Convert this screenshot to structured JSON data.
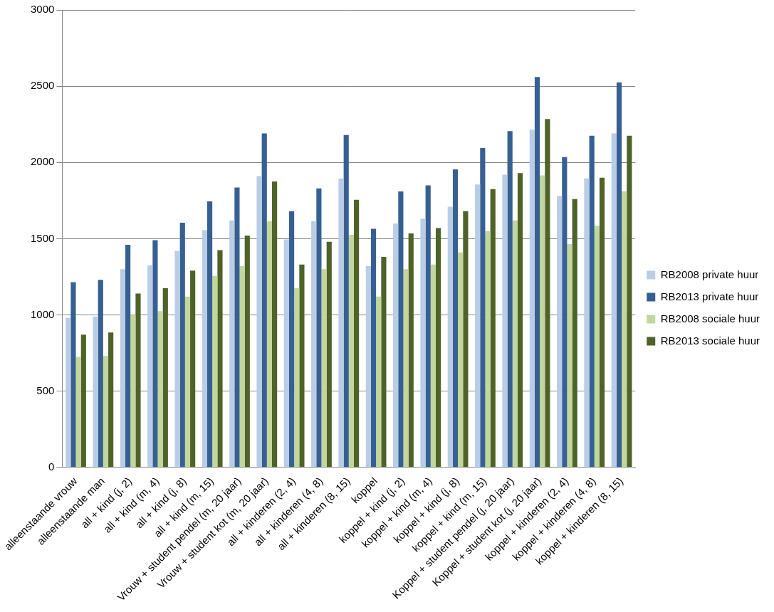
{
  "chart_data": {
    "type": "bar",
    "categories": [
      "alleenstaande vrouw",
      "alleenstaande man",
      "all + kind (j, 2)",
      "all + kind (m, 4)",
      "all + kind (j, 8)",
      "all + kind (m, 15)",
      "Vrouw + student pendel (m, 20 jaar)",
      "Vrouw + student kot (m, 20 jaar)",
      "all + kinderen (2, 4)",
      "all + kinderen (4, 8)",
      "all + kinderen (8, 15)",
      "koppel",
      "koppel + kind (j, 2)",
      "koppel + kind (m, 4)",
      "koppel + kind (j, 8)",
      "koppel + kind (m, 15)",
      "Koppel + student pendel (j, 20 jaar)",
      "Koppel + student kot (j, 20 jaar)",
      "koppel + kinderen (2, 4)",
      "koppel + kinderen (4, 8)",
      "koppel + kinderen (8, 15)"
    ],
    "series": [
      {
        "name": "RB2008 private huur",
        "color": "#b9cde5",
        "values": [
          980,
          990,
          1300,
          1325,
          1420,
          1555,
          1620,
          1910,
          1495,
          1615,
          1895,
          1320,
          1600,
          1630,
          1710,
          1855,
          1920,
          2215,
          1780,
          1895,
          2190
        ]
      },
      {
        "name": "RB2013 private huur",
        "color": "#376092",
        "values": [
          1215,
          1230,
          1460,
          1490,
          1605,
          1745,
          1835,
          2190,
          1680,
          1830,
          2180,
          1565,
          1810,
          1850,
          1955,
          2095,
          2205,
          2560,
          2035,
          2175,
          2525
        ]
      },
      {
        "name": "RB2008 sociale huur",
        "color": "#c3d69b",
        "values": [
          725,
          730,
          1000,
          1025,
          1120,
          1255,
          1320,
          1615,
          1175,
          1300,
          1525,
          1120,
          1300,
          1330,
          1410,
          1550,
          1620,
          1915,
          1465,
          1585,
          1810
        ]
      },
      {
        "name": "RB2013 sociale huur",
        "color": "#4f6228",
        "values": [
          870,
          885,
          1140,
          1175,
          1290,
          1425,
          1520,
          1875,
          1330,
          1480,
          1755,
          1380,
          1535,
          1570,
          1680,
          1825,
          1930,
          2285,
          1760,
          1900,
          2175
        ]
      }
    ],
    "ylim": [
      0,
      3000
    ],
    "yticks": [
      0,
      500,
      1000,
      1500,
      2000,
      2500,
      3000
    ],
    "grid": true,
    "legend": "right"
  }
}
